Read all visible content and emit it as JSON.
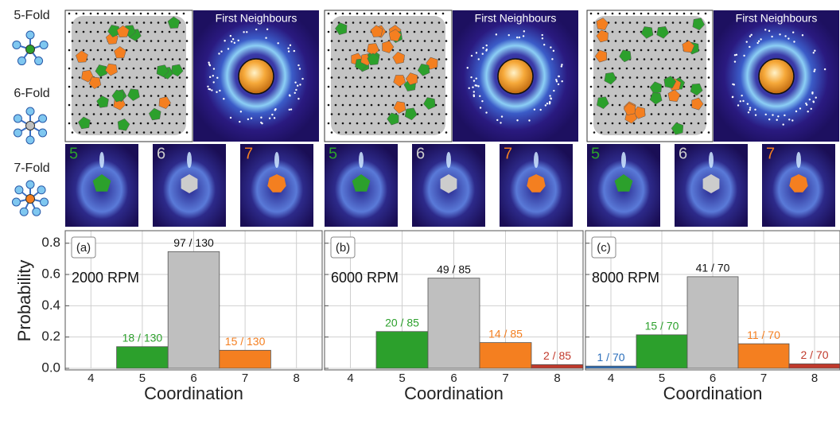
{
  "figure": {
    "row_labels": [
      "5-Fold",
      "6-Fold",
      "7-Fold"
    ],
    "panels": [
      {
        "title": "First Neighbours",
        "thumbnails": [
          "5",
          "6",
          "7"
        ]
      },
      {
        "title": "First Neighbours",
        "thumbnails": [
          "5",
          "6",
          "7"
        ]
      },
      {
        "title": "First Neighbours",
        "thumbnails": [
          "5",
          "6",
          "7"
        ]
      }
    ]
  },
  "chart_data": [
    {
      "type": "bar",
      "panel": "(a)",
      "annotation": "2000 RPM",
      "xlabel": "Coordination",
      "ylabel": "Probability",
      "categories": [
        "4",
        "5",
        "6",
        "7",
        "8"
      ],
      "values": [
        null,
        0.1385,
        0.7462,
        0.1154,
        null
      ],
      "value_labels": [
        null,
        "18 / 130",
        "97 / 130",
        "15 / 130",
        null
      ],
      "colors": [
        "#2a6ebb",
        "#2ca02c",
        "#bfbfbf",
        "#f47f20",
        "#c0392b"
      ],
      "label_colors": [
        "#2a6ebb",
        "#2ca02c",
        "#111111",
        "#f47f20",
        "#c0392b"
      ],
      "ylim": [
        0,
        0.88
      ],
      "yticks": [
        {
          "value": 0,
          "label": "0.0"
        },
        0.2,
        0.4,
        0.6,
        0.8
      ],
      "ytick_labels": true,
      "grid": true
    },
    {
      "type": "bar",
      "panel": "(b)",
      "annotation": "6000 RPM",
      "xlabel": "Coordination",
      "categories": [
        "4",
        "5",
        "6",
        "7",
        "8"
      ],
      "values": [
        null,
        0.2353,
        0.5765,
        0.1647,
        0.0235
      ],
      "value_labels": [
        null,
        "20 / 85",
        "49 / 85",
        "14 / 85",
        "2 / 85"
      ],
      "colors": [
        "#2a6ebb",
        "#2ca02c",
        "#bfbfbf",
        "#f47f20",
        "#c0392b"
      ],
      "label_colors": [
        "#2a6ebb",
        "#2ca02c",
        "#111111",
        "#f47f20",
        "#c0392b"
      ],
      "ylim": [
        0,
        0.88
      ],
      "yticks": [
        {
          "value": 0,
          "label": "0.0"
        },
        0.2,
        0.4,
        0.6,
        0.8
      ],
      "ytick_labels": false,
      "grid": true
    },
    {
      "type": "bar",
      "panel": "(c)",
      "annotation": "8000 RPM",
      "xlabel": "Coordination",
      "categories": [
        "4",
        "5",
        "6",
        "7",
        "8"
      ],
      "values": [
        0.0143,
        0.2143,
        0.5857,
        0.1571,
        0.0286
      ],
      "value_labels": [
        "1 / 70",
        "15 / 70",
        "41 / 70",
        "11 / 70",
        "2 / 70"
      ],
      "colors": [
        "#2a6ebb",
        "#2ca02c",
        "#bfbfbf",
        "#f47f20",
        "#c0392b"
      ],
      "label_colors": [
        "#2a6ebb",
        "#2ca02c",
        "#111111",
        "#f47f20",
        "#c0392b"
      ],
      "ylim": [
        0,
        0.88
      ],
      "yticks": [
        {
          "value": 0,
          "label": "0.0"
        },
        0.2,
        0.4,
        0.6,
        0.8
      ],
      "ytick_labels": false,
      "grid": true
    }
  ]
}
